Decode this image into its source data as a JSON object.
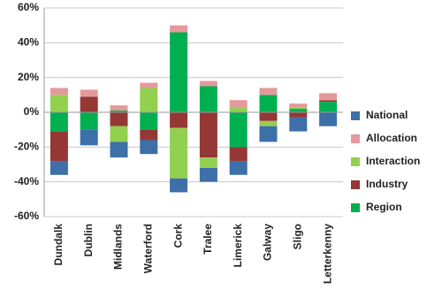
{
  "chart_data": {
    "type": "stacked-bar",
    "categories": [
      "Dundalk",
      "Dublin",
      "Midlands",
      "Waterford",
      "Cork",
      "Tralee",
      "Limerick",
      "Galway",
      "Sligo",
      "Letterkenny"
    ],
    "series": [
      {
        "name": "Region",
        "color": "#00b050",
        "values": [
          -11,
          -10,
          1,
          -10,
          46,
          15,
          -20,
          10,
          2,
          6
        ]
      },
      {
        "name": "Industry",
        "color": "#953735",
        "values": [
          -17,
          9,
          -8,
          -6,
          -9,
          -26,
          -8,
          -5,
          -3,
          1
        ]
      },
      {
        "name": "Interaction",
        "color": "#92d050",
        "values": [
          10,
          0,
          -9,
          14,
          -29,
          -6,
          3,
          -3,
          1,
          0
        ]
      },
      {
        "name": "Allocation",
        "color": "#e6999a",
        "values": [
          4,
          4,
          3,
          3,
          4,
          3,
          4,
          4,
          2,
          4
        ]
      },
      {
        "name": "National",
        "color": "#3d6fa8",
        "values": [
          -8,
          -9,
          -9,
          -8,
          -8,
          -8,
          -8,
          -9,
          -8,
          -8
        ]
      }
    ],
    "ylim": [
      -60,
      60
    ],
    "yticks": [
      {
        "value": -60,
        "label": "-60%"
      },
      {
        "value": -40,
        "label": "-40%"
      },
      {
        "value": -20,
        "label": "-20%"
      },
      {
        "value": 0,
        "label": "0%"
      },
      {
        "value": 20,
        "label": "20%"
      },
      {
        "value": 40,
        "label": "40%"
      },
      {
        "value": 60,
        "label": "60%"
      }
    ],
    "grid": true,
    "legend": "right"
  }
}
